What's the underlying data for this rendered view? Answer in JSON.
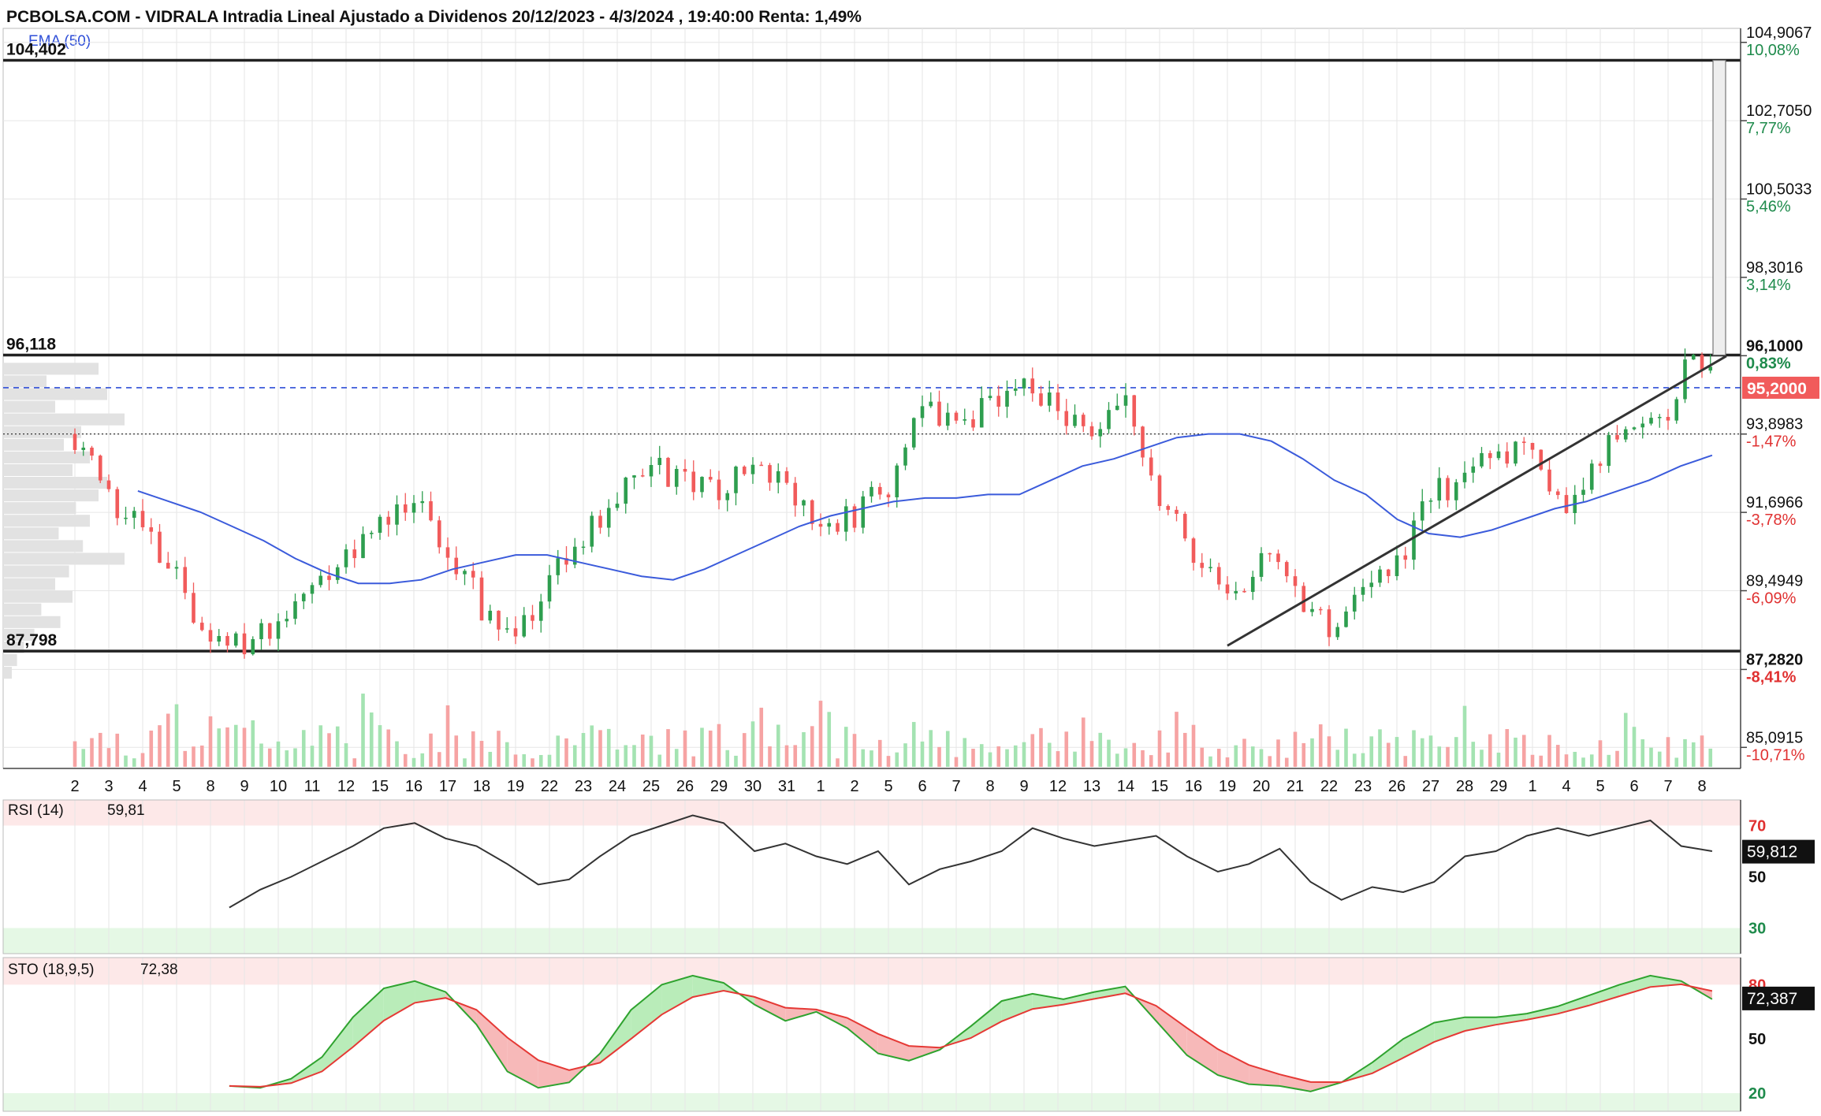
{
  "header": {
    "title": "PCBOLSA.COM - VIDRALA Intradia Lineal Ajustado a Dividenos 20/12/2023 - 4/3/2024 , 19:40:00 Renta: 1,49%",
    "ema_label": "EMA (50)"
  },
  "colors": {
    "up": "#2e9e4f",
    "down": "#f15b5b",
    "vol_up": "#a4e3b2",
    "vol_down": "#f6a3a3",
    "ema": "#3b5bdb",
    "grid": "#e6e6e6",
    "overbought_band": "#fde8e8",
    "oversold_band": "#e5f8e5",
    "green_text": "#1f8b4c",
    "red_text": "#e03131"
  },
  "chart_data": [
    {
      "type": "candlestick",
      "title": "PCBOLSA.COM - VIDRALA Intradia Lineal Ajustado a Dividenos 20/12/2023 - 4/3/2024 , 19:40:00 Renta: 1,49%",
      "x_tick_labels": [
        "2",
        "3",
        "4",
        "5",
        "8",
        "9",
        "10",
        "11",
        "12",
        "15",
        "16",
        "17",
        "18",
        "19",
        "22",
        "23",
        "24",
        "25",
        "26",
        "29",
        "30",
        "31",
        "1",
        "2",
        "5",
        "6",
        "7",
        "8",
        "9",
        "12",
        "13",
        "14",
        "15",
        "16",
        "19",
        "20",
        "21",
        "22",
        "23",
        "26",
        "27",
        "28",
        "29",
        "1",
        "4",
        "5",
        "6",
        "7",
        "8"
      ],
      "y_axis_ticks": [
        {
          "value": "104,9067",
          "pct": "10,08%"
        },
        {
          "value": "102,7050",
          "pct": "7,77%"
        },
        {
          "value": "100,5033",
          "pct": "5,46%"
        },
        {
          "value": "98,3016",
          "pct": "3,14%"
        },
        {
          "value": "96,1000",
          "pct": "0,83%"
        },
        {
          "value": "93,8983",
          "pct": "-1,47%"
        },
        {
          "value": "91,6966",
          "pct": "-3,78%"
        },
        {
          "value": "89,4949",
          "pct": "-6,09%"
        },
        {
          "value": "87,2820",
          "pct": "-8,41%"
        },
        {
          "value": "85,0915",
          "pct": "-10,71%"
        }
      ],
      "ylim": [
        84.5,
        105.3
      ],
      "last_price": "95,2000",
      "last_value": 95.2,
      "levels": [
        {
          "label": "104,402",
          "value": 104.402
        },
        {
          "label": "96,118",
          "value": 96.118
        },
        {
          "label": "87,798",
          "value": 87.798
        }
      ],
      "reference_dotted": 93.9,
      "trendline": {
        "from": {
          "x": 34.0,
          "y": 87.95
        },
        "to": {
          "x": 48.3,
          "y": 96.0
        }
      },
      "target_bar": {
        "x": 48.0,
        "low": 96.118,
        "high": 104.402
      },
      "volume_profile": [
        0.55,
        0.25,
        0.6,
        0.3,
        0.7,
        0.45,
        0.35,
        0.5,
        0.4,
        0.6,
        0.55,
        0.42,
        0.5,
        0.32,
        0.46,
        0.7,
        0.38,
        0.3,
        0.4,
        0.22,
        0.33,
        0.18,
        0.12,
        0.08,
        0.05
      ],
      "volume_profile_range": [
        87.0,
        95.9
      ],
      "series": [
        {
          "name": "EMA (50)",
          "values": [
            null,
            null,
            92.3,
            92.0,
            91.7,
            91.3,
            90.9,
            90.4,
            90.0,
            89.7,
            89.7,
            89.8,
            90.1,
            90.3,
            90.5,
            90.5,
            90.3,
            90.1,
            89.9,
            89.8,
            90.1,
            90.5,
            90.9,
            91.3,
            91.6,
            91.8,
            92.0,
            92.1,
            92.1,
            92.2,
            92.2,
            92.6,
            93.0,
            93.2,
            93.5,
            93.8,
            93.9,
            93.9,
            93.7,
            93.2,
            92.6,
            92.2,
            91.5,
            91.1,
            91.0,
            91.2,
            91.5,
            91.8,
            92.0,
            92.3,
            92.6,
            93.0,
            93.3
          ]
        },
        {
          "name": "RSI (14)",
          "last": "59,81",
          "last_value": 59.812,
          "ylim": [
            20,
            80
          ],
          "levels": [
            {
              "label": "70",
              "value": 70
            },
            {
              "label": "50",
              "value": 50
            },
            {
              "label": "30",
              "value": 30
            }
          ],
          "values": [
            null,
            null,
            null,
            null,
            null,
            38,
            45,
            50,
            56,
            62,
            69,
            71,
            65,
            62,
            55,
            47,
            49,
            58,
            66,
            70,
            74,
            71,
            60,
            63,
            58,
            55,
            60,
            47,
            53,
            56,
            60,
            69,
            65,
            62,
            64,
            66,
            58,
            52,
            55,
            61,
            48,
            41,
            46,
            44,
            48,
            58,
            60,
            66,
            69,
            66,
            69,
            72,
            62,
            60
          ]
        },
        {
          "name": "STO (18,9,5)",
          "last": "72,38",
          "last_value": 72.387,
          "ylim": [
            10,
            95
          ],
          "levels": [
            {
              "label": "80",
              "value": 80
            },
            {
              "label": "50",
              "value": 50
            },
            {
              "label": "20",
              "value": 20
            }
          ],
          "values": [
            null,
            null,
            null,
            null,
            null,
            24,
            23,
            28,
            40,
            62,
            78,
            82,
            76,
            58,
            32,
            23,
            26,
            42,
            66,
            80,
            85,
            81,
            69,
            60,
            65,
            56,
            42,
            38,
            44,
            57,
            71,
            75,
            72,
            76,
            79,
            60,
            41,
            30,
            25,
            24,
            21,
            26,
            37,
            50,
            59,
            62,
            62,
            64,
            68,
            74,
            80,
            85,
            82,
            72
          ]
        }
      ]
    }
  ],
  "indicators": {
    "rsi": {
      "label": "RSI (14)",
      "value": "59,81",
      "box": "59,812"
    },
    "sto": {
      "label": "STO (18,9,5)",
      "value": "72,38",
      "box": "72,387"
    }
  }
}
